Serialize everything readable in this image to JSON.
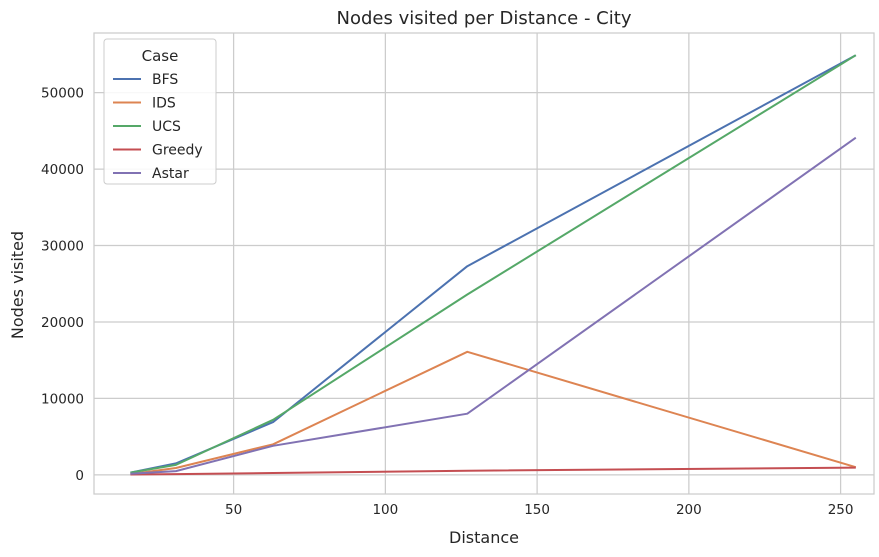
{
  "chart_data": {
    "type": "line",
    "title": "Nodes visited per Distance - City",
    "xlabel": "Distance",
    "ylabel": "Nodes visited",
    "xlim": [
      4,
      261
    ],
    "ylim": [
      -2500,
      57800
    ],
    "xticks": [
      50,
      100,
      150,
      200,
      250
    ],
    "yticks": [
      0,
      10000,
      20000,
      30000,
      40000,
      50000
    ],
    "grid": true,
    "legend": {
      "title": "Case",
      "placement": "top-left"
    },
    "series": [
      {
        "name": "BFS",
        "color": "#4c72b0",
        "points": [
          [
            16,
            300
          ],
          [
            31,
            1500
          ],
          [
            63,
            6900
          ],
          [
            127,
            27300
          ],
          [
            255,
            54900
          ]
        ]
      },
      {
        "name": "IDS",
        "color": "#dd8452",
        "points": [
          [
            16,
            100
          ],
          [
            31,
            900
          ],
          [
            63,
            4000
          ],
          [
            127,
            16100
          ],
          [
            255,
            1000
          ]
        ]
      },
      {
        "name": "UCS",
        "color": "#55a868",
        "points": [
          [
            16,
            300
          ],
          [
            31,
            1300
          ],
          [
            63,
            7200
          ],
          [
            127,
            23600
          ],
          [
            255,
            54900
          ]
        ]
      },
      {
        "name": "Greedy",
        "color": "#c44e52",
        "points": [
          [
            16,
            50
          ],
          [
            31,
            100
          ],
          [
            63,
            250
          ],
          [
            127,
            550
          ],
          [
            255,
            950
          ]
        ]
      },
      {
        "name": "Astar",
        "color": "#8172b3",
        "points": [
          [
            16,
            150
          ],
          [
            31,
            500
          ],
          [
            63,
            3800
          ],
          [
            127,
            8000
          ],
          [
            255,
            44100
          ]
        ]
      }
    ]
  }
}
